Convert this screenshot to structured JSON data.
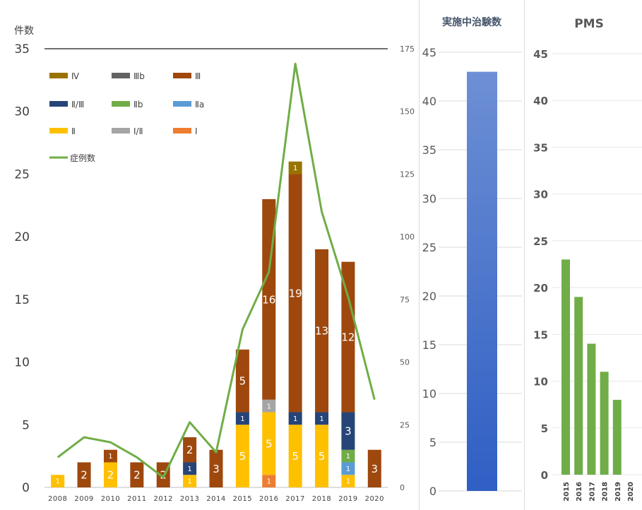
{
  "chart_data": [
    {
      "type": "bar",
      "stacked": true,
      "secondary_axis": true,
      "y_unit_label": "件数",
      "categories": [
        "2008",
        "2009",
        "2010",
        "2011",
        "2012",
        "2013",
        "2014",
        "2015",
        "2016",
        "2017",
        "2018",
        "2019",
        "2020"
      ],
      "ylim": [
        0,
        35
      ],
      "y2lim": [
        0,
        175
      ],
      "y_ticks": [
        0,
        5,
        10,
        15,
        20,
        25,
        30,
        35
      ],
      "y2_ticks": [
        0,
        25,
        50,
        75,
        100,
        125,
        150,
        175
      ],
      "legend_position": "top-left",
      "series": [
        {
          "name": "Ⅰ",
          "color": "#ed7d31",
          "values": [
            0,
            0,
            0,
            0,
            0,
            0,
            0,
            0,
            1,
            0,
            0,
            0,
            0
          ]
        },
        {
          "name": "Ⅱ",
          "color": "#ffc000",
          "values": [
            1,
            0,
            2,
            0,
            0,
            1,
            0,
            5,
            5,
            5,
            5,
            1,
            0
          ]
        },
        {
          "name": "Ⅰ/Ⅱ",
          "color": "#a5a5a5",
          "values": [
            0,
            0,
            0,
            0,
            0,
            0,
            0,
            0,
            1,
            0,
            0,
            0,
            0
          ]
        },
        {
          "name": "Ⅱa",
          "color": "#5b9bd5",
          "values": [
            0,
            0,
            0,
            0,
            0,
            0,
            0,
            0,
            0,
            0,
            0,
            1,
            0
          ]
        },
        {
          "name": "Ⅱb",
          "color": "#70ad47",
          "values": [
            0,
            0,
            0,
            0,
            0,
            0,
            0,
            0,
            0,
            0,
            0,
            1,
            0
          ]
        },
        {
          "name": "Ⅱ/Ⅲ",
          "color": "#264478",
          "values": [
            0,
            0,
            0,
            0,
            0,
            1,
            0,
            1,
            0,
            1,
            1,
            3,
            0
          ]
        },
        {
          "name": "Ⅲ",
          "color": "#9e480e",
          "values": [
            0,
            2,
            1,
            2,
            2,
            2,
            3,
            5,
            16,
            19,
            13,
            12,
            3
          ]
        },
        {
          "name": "Ⅲb",
          "color": "#636363",
          "values": [
            0,
            0,
            0,
            0,
            0,
            0,
            0,
            0,
            0,
            0,
            0,
            0,
            0
          ]
        },
        {
          "name": "Ⅳ",
          "color": "#997300",
          "values": [
            0,
            0,
            0,
            0,
            0,
            0,
            0,
            0,
            0,
            1,
            0,
            0,
            0
          ]
        }
      ],
      "line_series": {
        "name": "症例数",
        "color": "#70ad47",
        "axis": "secondary",
        "values": [
          12,
          20,
          18,
          12,
          4,
          26,
          14,
          63,
          86,
          169,
          110,
          76,
          35
        ]
      },
      "legend_order": [
        "Ⅳ",
        "Ⅲb",
        "Ⅲ",
        "Ⅱ/Ⅲ",
        "Ⅱb",
        "Ⅱa",
        "Ⅱ",
        "Ⅰ/Ⅱ",
        "Ⅰ",
        "症例数"
      ]
    },
    {
      "type": "bar",
      "title": "実施中治験数",
      "categories": [
        ""
      ],
      "values": [
        43
      ],
      "ylim": [
        0,
        45
      ],
      "y_ticks": [
        0,
        5,
        10,
        15,
        20,
        25,
        30,
        35,
        40,
        45
      ],
      "colors": [
        "#4472c4"
      ]
    },
    {
      "type": "bar",
      "title": "PMS",
      "categories": [
        "2015",
        "2016",
        "2017",
        "2018",
        "2019",
        "2020"
      ],
      "values": [
        23,
        19,
        14,
        11,
        8,
        0
      ],
      "ylim": [
        0,
        45
      ],
      "y_ticks": [
        0,
        5,
        10,
        15,
        20,
        25,
        30,
        35,
        40,
        45
      ],
      "colors": [
        "#70ad47"
      ]
    }
  ]
}
